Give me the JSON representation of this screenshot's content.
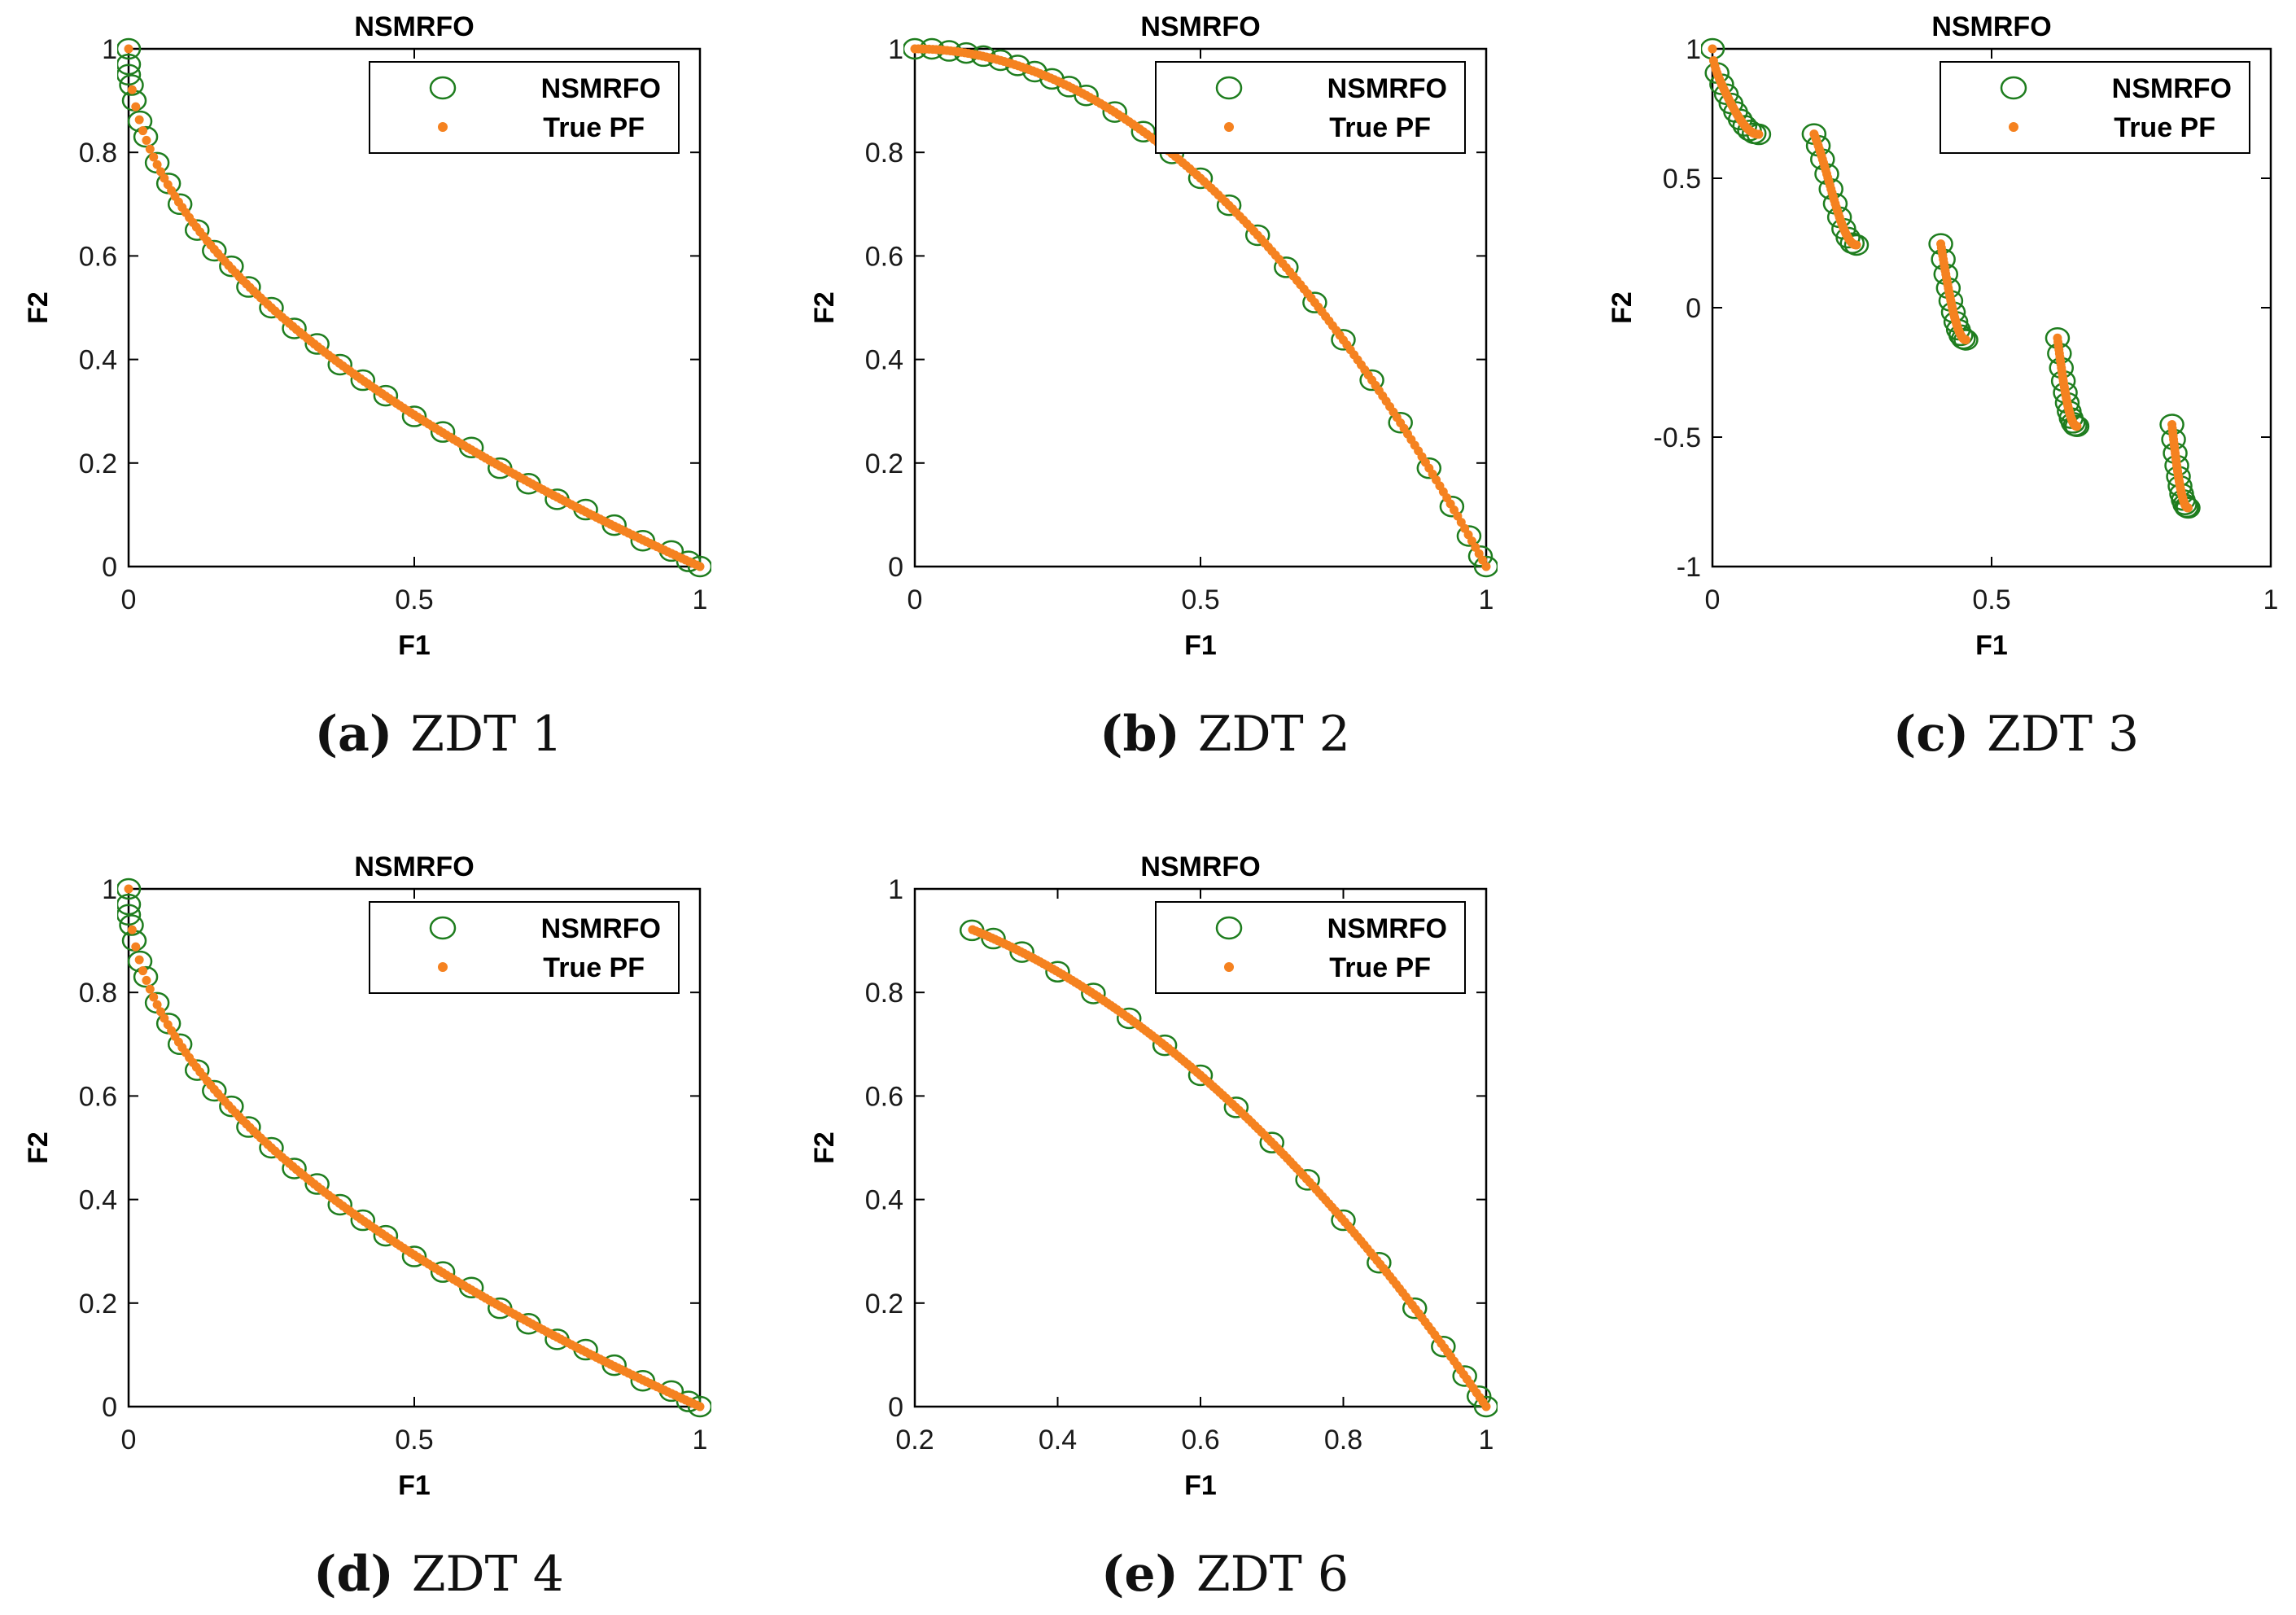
{
  "figure": {
    "legend_labels": [
      "NSMRFO",
      "True PF"
    ],
    "colors": {
      "nsmrfo": "#1e7d1e",
      "true_pf": "#f58220",
      "axis": "#000000",
      "background": "#ffffff"
    }
  },
  "chart_data": [
    {
      "id": "zdt1",
      "type": "scatter",
      "title": "NSMRFO",
      "xlabel": "F1",
      "ylabel": "F2",
      "xlim": [
        0,
        1
      ],
      "ylim": [
        0,
        1
      ],
      "xticks": [
        "0",
        "0.5",
        "1"
      ],
      "xtick_values": [
        0,
        0.5,
        1
      ],
      "yticks": [
        "0",
        "0.2",
        "0.4",
        "0.6",
        "0.8",
        "1"
      ],
      "ytick_values": [
        0,
        0.2,
        0.4,
        0.6,
        0.8,
        1
      ],
      "legend_position": "top-right",
      "caption_letter": "(a)",
      "caption_text": "ZDT 1",
      "series": [
        {
          "name": "NSMRFO",
          "marker": "open-circle",
          "points": [
            [
              0.0,
              1.0
            ],
            [
              0.0,
              0.97
            ],
            [
              0.0,
              0.95
            ],
            [
              0.005,
              0.93
            ],
            [
              0.01,
              0.9
            ],
            [
              0.02,
              0.86
            ],
            [
              0.03,
              0.83
            ],
            [
              0.05,
              0.78
            ],
            [
              0.07,
              0.74
            ],
            [
              0.09,
              0.7
            ],
            [
              0.12,
              0.65
            ],
            [
              0.15,
              0.61
            ],
            [
              0.18,
              0.58
            ],
            [
              0.21,
              0.54
            ],
            [
              0.25,
              0.5
            ],
            [
              0.29,
              0.46
            ],
            [
              0.33,
              0.43
            ],
            [
              0.37,
              0.39
            ],
            [
              0.41,
              0.36
            ],
            [
              0.45,
              0.33
            ],
            [
              0.5,
              0.29
            ],
            [
              0.55,
              0.26
            ],
            [
              0.6,
              0.23
            ],
            [
              0.65,
              0.19
            ],
            [
              0.7,
              0.16
            ],
            [
              0.75,
              0.13
            ],
            [
              0.8,
              0.11
            ],
            [
              0.85,
              0.08
            ],
            [
              0.9,
              0.05
            ],
            [
              0.95,
              0.03
            ],
            [
              0.98,
              0.01
            ],
            [
              1.0,
              0.0
            ]
          ]
        },
        {
          "name": "True PF",
          "marker": "dot",
          "function": "1-sqrt(x)",
          "x_range": [
            0,
            1
          ]
        }
      ]
    },
    {
      "id": "zdt2",
      "type": "scatter",
      "title": "NSMRFO",
      "xlabel": "F1",
      "ylabel": "F2",
      "xlim": [
        0,
        1
      ],
      "ylim": [
        0,
        1
      ],
      "xticks": [
        "0",
        "0.5",
        "1"
      ],
      "xtick_values": [
        0,
        0.5,
        1
      ],
      "yticks": [
        "0",
        "0.2",
        "0.4",
        "0.6",
        "0.8",
        "1"
      ],
      "ytick_values": [
        0,
        0.2,
        0.4,
        0.6,
        0.8,
        1
      ],
      "legend_position": "top-right",
      "caption_letter": "(b)",
      "caption_text": "ZDT 2",
      "series": [
        {
          "name": "NSMRFO",
          "marker": "open-circle",
          "points": [
            [
              0.0,
              1.0
            ],
            [
              0.03,
              1.0
            ],
            [
              0.06,
              0.996
            ],
            [
              0.09,
              0.992
            ],
            [
              0.12,
              0.986
            ],
            [
              0.15,
              0.978
            ],
            [
              0.18,
              0.968
            ],
            [
              0.21,
              0.956
            ],
            [
              0.24,
              0.942
            ],
            [
              0.27,
              0.927
            ],
            [
              0.3,
              0.91
            ],
            [
              0.35,
              0.878
            ],
            [
              0.4,
              0.84
            ],
            [
              0.45,
              0.798
            ],
            [
              0.5,
              0.75
            ],
            [
              0.55,
              0.698
            ],
            [
              0.6,
              0.64
            ],
            [
              0.65,
              0.578
            ],
            [
              0.7,
              0.51
            ],
            [
              0.75,
              0.438
            ],
            [
              0.8,
              0.36
            ],
            [
              0.85,
              0.278
            ],
            [
              0.9,
              0.19
            ],
            [
              0.94,
              0.116
            ],
            [
              0.97,
              0.059
            ],
            [
              0.99,
              0.02
            ],
            [
              1.0,
              0.0
            ]
          ]
        },
        {
          "name": "True PF",
          "marker": "dot",
          "function": "1-x^2",
          "x_range": [
            0,
            1
          ]
        }
      ]
    },
    {
      "id": "zdt3",
      "type": "scatter",
      "title": "NSMRFO",
      "xlabel": "F1",
      "ylabel": "F2",
      "xlim": [
        0,
        1
      ],
      "ylim": [
        -1,
        1
      ],
      "xticks": [
        "0",
        "0.5",
        "1"
      ],
      "xtick_values": [
        0,
        0.5,
        1
      ],
      "yticks": [
        "-1",
        "-0.5",
        "0",
        "0.5",
        "1"
      ],
      "ytick_values": [
        -1,
        -0.5,
        0,
        0.5,
        1
      ],
      "legend_position": "top-right",
      "caption_letter": "(c)",
      "caption_text": "ZDT 3",
      "series": [
        {
          "name": "NSMRFO",
          "marker": "open-circle",
          "function": "1-sqrt(x)-x*sin(10*pi*x)",
          "segments": [
            [
              0.0,
              0.083
            ],
            [
              0.182,
              0.258
            ],
            [
              0.409,
              0.454
            ],
            [
              0.618,
              0.653
            ],
            [
              0.823,
              0.852
            ]
          ]
        },
        {
          "name": "True PF",
          "marker": "dot",
          "function": "1-sqrt(x)-x*sin(10*pi*x)",
          "segments": [
            [
              0.0,
              0.083
            ],
            [
              0.182,
              0.258
            ],
            [
              0.409,
              0.454
            ],
            [
              0.618,
              0.653
            ],
            [
              0.823,
              0.852
            ]
          ]
        }
      ]
    },
    {
      "id": "zdt4",
      "type": "scatter",
      "title": "NSMRFO",
      "xlabel": "F1",
      "ylabel": "F2",
      "xlim": [
        0,
        1
      ],
      "ylim": [
        0,
        1
      ],
      "xticks": [
        "0",
        "0.5",
        "1"
      ],
      "xtick_values": [
        0,
        0.5,
        1
      ],
      "yticks": [
        "0",
        "0.2",
        "0.4",
        "0.6",
        "0.8",
        "1"
      ],
      "ytick_values": [
        0,
        0.2,
        0.4,
        0.6,
        0.8,
        1
      ],
      "legend_position": "top-right",
      "caption_letter": "(d)",
      "caption_text": "ZDT 4",
      "series": [
        {
          "name": "NSMRFO",
          "marker": "open-circle",
          "points": [
            [
              0.0,
              1.0
            ],
            [
              0.0,
              0.97
            ],
            [
              0.0,
              0.95
            ],
            [
              0.005,
              0.93
            ],
            [
              0.01,
              0.9
            ],
            [
              0.02,
              0.86
            ],
            [
              0.03,
              0.83
            ],
            [
              0.05,
              0.78
            ],
            [
              0.07,
              0.74
            ],
            [
              0.09,
              0.7
            ],
            [
              0.12,
              0.65
            ],
            [
              0.15,
              0.61
            ],
            [
              0.18,
              0.58
            ],
            [
              0.21,
              0.54
            ],
            [
              0.25,
              0.5
            ],
            [
              0.29,
              0.46
            ],
            [
              0.33,
              0.43
            ],
            [
              0.37,
              0.39
            ],
            [
              0.41,
              0.36
            ],
            [
              0.45,
              0.33
            ],
            [
              0.5,
              0.29
            ],
            [
              0.55,
              0.26
            ],
            [
              0.6,
              0.23
            ],
            [
              0.65,
              0.19
            ],
            [
              0.7,
              0.16
            ],
            [
              0.75,
              0.13
            ],
            [
              0.8,
              0.11
            ],
            [
              0.85,
              0.08
            ],
            [
              0.9,
              0.05
            ],
            [
              0.95,
              0.03
            ],
            [
              0.98,
              0.01
            ],
            [
              1.0,
              0.0
            ]
          ]
        },
        {
          "name": "True PF",
          "marker": "dot",
          "function": "1-sqrt(x)",
          "x_range": [
            0,
            1
          ]
        }
      ]
    },
    {
      "id": "zdt6",
      "type": "scatter",
      "title": "NSMRFO",
      "xlabel": "F1",
      "ylabel": "F2",
      "xlim": [
        0.2,
        1
      ],
      "ylim": [
        0,
        1
      ],
      "xticks": [
        "0.2",
        "0.4",
        "0.6",
        "0.8",
        "1"
      ],
      "xtick_values": [
        0.2,
        0.4,
        0.6,
        0.8,
        1
      ],
      "yticks": [
        "0",
        "0.2",
        "0.4",
        "0.6",
        "0.8",
        "1"
      ],
      "ytick_values": [
        0,
        0.2,
        0.4,
        0.6,
        0.8,
        1
      ],
      "legend_position": "top-right",
      "caption_letter": "(e)",
      "caption_text": "ZDT 6",
      "series": [
        {
          "name": "NSMRFO",
          "marker": "open-circle",
          "points": [
            [
              0.28,
              0.92
            ],
            [
              0.31,
              0.904
            ],
            [
              0.35,
              0.878
            ],
            [
              0.4,
              0.84
            ],
            [
              0.45,
              0.798
            ],
            [
              0.5,
              0.75
            ],
            [
              0.55,
              0.698
            ],
            [
              0.6,
              0.64
            ],
            [
              0.65,
              0.578
            ],
            [
              0.7,
              0.51
            ],
            [
              0.75,
              0.438
            ],
            [
              0.8,
              0.36
            ],
            [
              0.85,
              0.278
            ],
            [
              0.9,
              0.19
            ],
            [
              0.94,
              0.116
            ],
            [
              0.97,
              0.059
            ],
            [
              0.99,
              0.02
            ],
            [
              1.0,
              0.0
            ]
          ]
        },
        {
          "name": "True PF",
          "marker": "dot",
          "function": "1-x^2",
          "x_range": [
            0.2808,
            1
          ]
        }
      ]
    }
  ]
}
